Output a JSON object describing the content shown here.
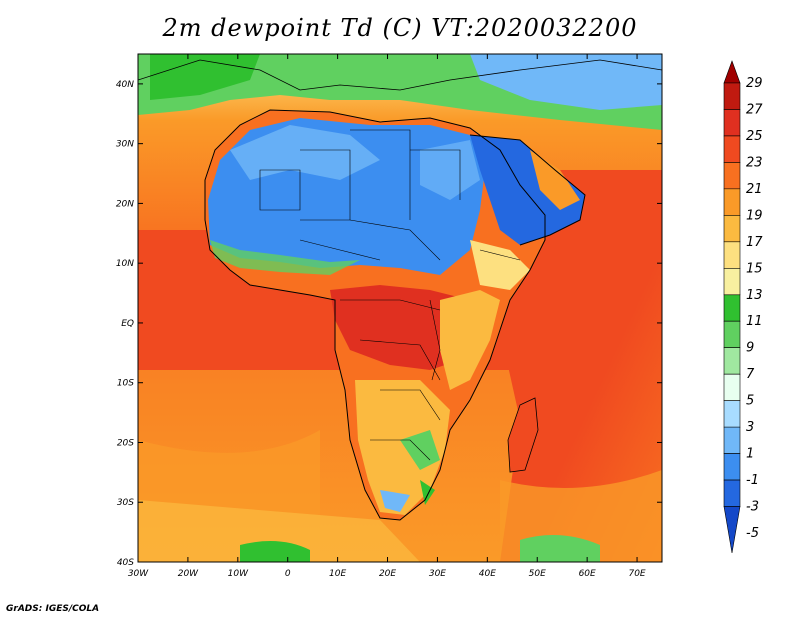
{
  "title": "2m dewpoint Td (C) VT:2020032200",
  "credit": "GrADS: IGES/COLA",
  "map": {
    "lon_range": [
      -30,
      75
    ],
    "lat_range": [
      -40,
      45
    ],
    "lon_ticks": [
      "30W",
      "20W",
      "10W",
      "0",
      "10E",
      "20E",
      "30E",
      "40E",
      "50E",
      "60E",
      "70E"
    ],
    "lat_ticks": [
      "40N",
      "30N",
      "20N",
      "10N",
      "EQ",
      "10S",
      "20S",
      "30S",
      "40S"
    ],
    "lon_tick_values": [
      -30,
      -20,
      -10,
      0,
      10,
      20,
      30,
      40,
      50,
      60,
      70
    ],
    "lat_tick_values": [
      40,
      30,
      20,
      10,
      0,
      -10,
      -20,
      -30,
      -40
    ]
  },
  "colorbar": {
    "labels": [
      "29",
      "27",
      "25",
      "23",
      "21",
      "19",
      "17",
      "15",
      "13",
      "11",
      "9",
      "7",
      "5",
      "3",
      "1",
      "-1",
      "-3",
      "-5"
    ],
    "colors": [
      "#a00000",
      "#c01a10",
      "#e03020",
      "#f04a20",
      "#f87020",
      "#fa9a28",
      "#fbba40",
      "#fde080",
      "#f8f0a0",
      "#30c030",
      "#60d060",
      "#a0e8a0",
      "#e8fff0",
      "#a8dcff",
      "#70b8f8",
      "#3c8ef0",
      "#2468e0",
      "#1448c8"
    ]
  },
  "colors": {
    "ocean_warm": "#f04a20",
    "ocean_mid": "#f87020",
    "ocean_cool": "#fa9a28",
    "sahara": "#3c8ef0",
    "sahara_light": "#70b8f8",
    "med": "#60d060",
    "boundary": "#000000"
  }
}
